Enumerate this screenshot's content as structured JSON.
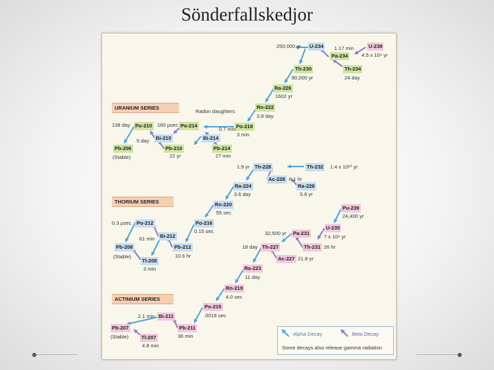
{
  "title": "Sönderfallskedjor",
  "series": {
    "uranium": "URANIUM SERIES",
    "thorium": "THORIUM SERIES",
    "actinium": "ACTINIUM SERIES"
  },
  "radon_caption": "Radon daughters",
  "legend": {
    "alpha": "Alpha Decay",
    "beta": "Beta Decay",
    "gamma": "Some decays also release gamma radiation"
  },
  "colors": {
    "stable": "#cfe4a2",
    "short": "#c6ddef",
    "long": "#f3c8dc",
    "series_bar": "#f6cfb3",
    "alpha_arrow": "#4fa3d8",
    "beta_arrow": "#8a7bc0"
  },
  "nuclides": [
    {
      "label": "U-234",
      "color": "blue"
    },
    {
      "label": "U-238",
      "color": "pink"
    },
    {
      "label": "Pa-234",
      "color": "green"
    },
    {
      "label": "Th-230",
      "color": "green"
    },
    {
      "label": "Th-234",
      "color": "green"
    },
    {
      "label": "Ra-226",
      "color": "green"
    },
    {
      "label": "Rn-222",
      "color": "green"
    },
    {
      "label": "Po-218",
      "color": "green"
    },
    {
      "label": "Po-210",
      "color": "green"
    },
    {
      "label": "Po-214",
      "color": "green"
    },
    {
      "label": "Bi-210",
      "color": "blue"
    },
    {
      "label": "Bi-214",
      "color": "blue"
    },
    {
      "label": "Pb-206",
      "color": "green"
    },
    {
      "label": "Pb-210",
      "color": "green"
    },
    {
      "label": "Pb-214",
      "color": "green"
    },
    {
      "label": "Th-228",
      "color": "blue"
    },
    {
      "label": "Th-232",
      "color": "blue"
    },
    {
      "label": "Ac-228",
      "color": "blue"
    },
    {
      "label": "Ra-224",
      "color": "blue"
    },
    {
      "label": "Ra-228",
      "color": "blue"
    },
    {
      "label": "Rn-220",
      "color": "blue"
    },
    {
      "label": "Po-212",
      "color": "blue"
    },
    {
      "label": "Po-216",
      "color": "blue"
    },
    {
      "label": "Bi-212",
      "color": "blue"
    },
    {
      "label": "Pb-208",
      "color": "blue"
    },
    {
      "label": "Pb-212",
      "color": "blue"
    },
    {
      "label": "Tl-208",
      "color": "blue"
    },
    {
      "label": "Pu-239",
      "color": "pink"
    },
    {
      "label": "U-235",
      "color": "pink"
    },
    {
      "label": "Pa-231",
      "color": "pink"
    },
    {
      "label": "Th-227",
      "color": "pink"
    },
    {
      "label": "Th-231",
      "color": "pink"
    },
    {
      "label": "Ac-227",
      "color": "pink"
    },
    {
      "label": "Ra-223",
      "color": "pink"
    },
    {
      "label": "Rn-219",
      "color": "pink"
    },
    {
      "label": "Po-215",
      "color": "pink"
    },
    {
      "label": "Bi-211",
      "color": "pink"
    },
    {
      "label": "Pb-207",
      "color": "pink"
    },
    {
      "label": "Pb-211",
      "color": "pink"
    },
    {
      "label": "Tl-207",
      "color": "pink"
    }
  ],
  "half_lives": [
    "250,000 yr",
    "1.17 min",
    "4.5 x 10⁹ yr",
    "80,000 yr",
    "24 day",
    "1602 yr",
    "3.8 day",
    "138 day",
    "160 µsec",
    "0.7 min",
    "3 min",
    "5 day",
    "22 yr",
    "27 min",
    "(Stable)",
    "1.9 yr",
    "1.4 x 10¹⁰ yr",
    "6.1 hr",
    "3.6 day",
    "5.8 yr",
    "55 sec",
    "0.3 µsec",
    "61 min",
    "0.15 sec",
    "10.6 hr",
    "3 min",
    "(Stable)",
    "24,400 yr",
    "7 x 10⁸ yr",
    "32,500 yr",
    "18 day",
    "26 hr",
    "21.8 yr",
    "11 day",
    "4.0 sec",
    ".0018 sec",
    "2.1 min",
    "36 min",
    "(Stable)",
    "4.8 min"
  ]
}
